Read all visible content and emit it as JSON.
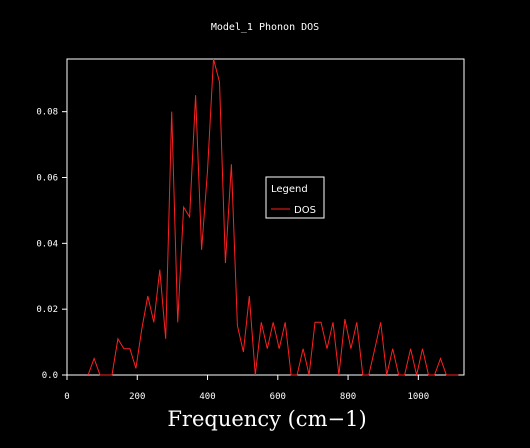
{
  "chart_data": {
    "type": "line",
    "title": "Model_1 Phonon DOS",
    "xlabel": "Frequency (cm−1)",
    "ylabel": "",
    "xlim": [
      0,
      1130
    ],
    "ylim": [
      0,
      0.096
    ],
    "xticks": [
      0,
      200,
      400,
      600,
      800,
      1000
    ],
    "yticks": [
      0.0,
      0.02,
      0.04,
      0.06,
      0.08
    ],
    "ytick_labels": [
      "0.0",
      "0.02",
      "0.04",
      "0.06",
      "0.08"
    ],
    "xtick_labels": [
      "0",
      "200",
      "400",
      "600",
      "800",
      "1000"
    ],
    "grid": false,
    "legend": {
      "title": "Legend",
      "placement": "center-right",
      "entries": [
        "DOS"
      ]
    },
    "background": "#000000",
    "frame_color": "#ffffff",
    "series": [
      {
        "name": "DOS",
        "color": "#ff2020",
        "x": [
          60,
          77,
          94,
          111,
          128,
          145,
          162,
          179,
          196,
          213,
          230,
          247,
          264,
          281,
          298,
          315,
          332,
          349,
          366,
          383,
          400,
          417,
          434,
          451,
          468,
          485,
          502,
          519,
          536,
          553,
          570,
          587,
          604,
          621,
          638,
          655,
          672,
          689,
          706,
          723,
          740,
          757,
          774,
          791,
          808,
          825,
          842,
          859,
          876,
          893,
          910,
          927,
          944,
          961,
          978,
          995,
          1012,
          1029,
          1046,
          1063,
          1080,
          1097,
          1114
        ],
        "values": [
          0.0,
          0.005,
          0.0,
          0.0,
          0.0,
          0.011,
          0.008,
          0.008,
          0.002,
          0.014,
          0.024,
          0.016,
          0.032,
          0.011,
          0.08,
          0.016,
          0.051,
          0.048,
          0.085,
          0.038,
          0.062,
          0.096,
          0.089,
          0.034,
          0.064,
          0.015,
          0.007,
          0.024,
          0.0,
          0.016,
          0.008,
          0.016,
          0.008,
          0.016,
          0.0,
          0.0,
          0.008,
          0.0,
          0.016,
          0.016,
          0.008,
          0.016,
          0.0,
          0.017,
          0.008,
          0.016,
          0.0,
          0.0,
          0.008,
          0.016,
          0.0,
          0.008,
          0.0,
          0.0,
          0.008,
          0.0,
          0.008,
          0.0,
          0.0,
          0.005,
          0.0,
          0.0,
          0.0
        ]
      }
    ]
  }
}
